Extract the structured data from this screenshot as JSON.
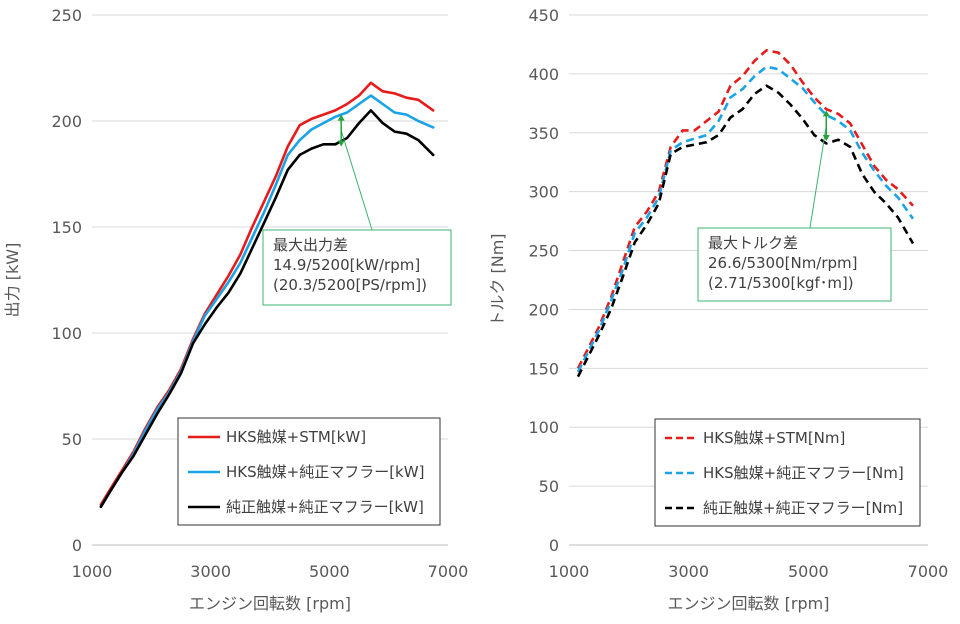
{
  "chart_data": [
    {
      "type": "line",
      "xlabel": "エンジン回転数 [rpm]",
      "ylabel": "出力 [kW]",
      "xlim": [
        1000,
        7000
      ],
      "ylim": [
        0,
        250
      ],
      "xticks": [
        1000,
        3000,
        5000,
        7000
      ],
      "yticks": [
        0,
        50,
        100,
        150,
        200,
        250
      ],
      "grid": "horizontal",
      "legend_position": "bottom-right",
      "series": [
        {
          "name": "HKS触媒+STM[kW]",
          "color": "#e81b1b",
          "style": "solid",
          "x": [
            1150,
            1300,
            1500,
            1700,
            1900,
            2100,
            2300,
            2500,
            2700,
            2900,
            3100,
            3300,
            3500,
            3700,
            3900,
            4100,
            4300,
            4500,
            4700,
            4900,
            5100,
            5300,
            5500,
            5700,
            5900,
            6100,
            6300,
            6500,
            6750
          ],
          "y": [
            19,
            26,
            35,
            44,
            55,
            65,
            73,
            83,
            97,
            109,
            118,
            127,
            137,
            150,
            162,
            174,
            188,
            198,
            201,
            203,
            205,
            208,
            212,
            218,
            214,
            213,
            211,
            210,
            205
          ]
        },
        {
          "name": "HKS触媒+純正マフラー[kW]",
          "color": "#1aa3e6",
          "style": "solid",
          "x": [
            1150,
            1300,
            1500,
            1700,
            1900,
            2100,
            2300,
            2500,
            2700,
            2900,
            3100,
            3300,
            3500,
            3700,
            3900,
            4100,
            4300,
            4500,
            4700,
            4900,
            5100,
            5300,
            5500,
            5700,
            5900,
            6100,
            6300,
            6500,
            6750
          ],
          "y": [
            18,
            25,
            34,
            43,
            54,
            64,
            72,
            82,
            96,
            108,
            116,
            124,
            133,
            145,
            157,
            170,
            184,
            191,
            196,
            199,
            202,
            204,
            208,
            212,
            208,
            204,
            203,
            200,
            197
          ]
        },
        {
          "name": "純正触媒+純正マフラー[kW]",
          "color": "#000000",
          "style": "solid",
          "x": [
            1150,
            1300,
            1500,
            1700,
            1900,
            2100,
            2300,
            2500,
            2700,
            2900,
            3100,
            3300,
            3500,
            3700,
            3900,
            4100,
            4300,
            4500,
            4700,
            4900,
            5100,
            5300,
            5500,
            5700,
            5900,
            6100,
            6300,
            6500,
            6750
          ],
          "y": [
            18,
            25,
            34,
            42,
            52,
            62,
            71,
            81,
            95,
            104,
            112,
            119,
            128,
            140,
            152,
            164,
            177,
            184,
            187,
            189,
            189,
            192,
            199,
            205,
            199,
            195,
            194,
            191,
            184
          ]
        }
      ],
      "annotation": {
        "x": 5200,
        "y_low": 188,
        "y_high": 203,
        "lines": [
          "最大出力差",
          "14.9/5200[kW/rpm]",
          "(20.3/5200[PS/rpm])"
        ]
      }
    },
    {
      "type": "line",
      "xlabel": "エンジン回転数 [rpm]",
      "ylabel": "トルク [Nm]",
      "xlim": [
        1000,
        7000
      ],
      "ylim": [
        0,
        450
      ],
      "xticks": [
        1000,
        3000,
        5000,
        7000
      ],
      "yticks": [
        0,
        50,
        100,
        150,
        200,
        250,
        300,
        350,
        400,
        450
      ],
      "grid": "horizontal",
      "legend_position": "bottom-right",
      "series": [
        {
          "name": "HKS触媒+STM[Nm]",
          "color": "#e81b1b",
          "style": "dashed",
          "x": [
            1150,
            1300,
            1500,
            1700,
            1900,
            2100,
            2300,
            2500,
            2700,
            2900,
            3100,
            3300,
            3500,
            3700,
            3900,
            4100,
            4300,
            4500,
            4700,
            4900,
            5100,
            5300,
            5500,
            5700,
            5900,
            6100,
            6300,
            6500,
            6750
          ],
          "y": [
            150,
            165,
            185,
            210,
            240,
            270,
            283,
            300,
            338,
            352,
            352,
            360,
            368,
            390,
            398,
            411,
            420,
            418,
            408,
            393,
            380,
            370,
            366,
            358,
            340,
            322,
            310,
            302,
            288
          ]
        },
        {
          "name": "HKS触媒+純正マフラー[Nm]",
          "color": "#1aa3e6",
          "style": "dashed",
          "x": [
            1150,
            1300,
            1500,
            1700,
            1900,
            2100,
            2300,
            2500,
            2700,
            2900,
            3100,
            3300,
            3500,
            3700,
            3900,
            4100,
            4300,
            4500,
            4700,
            4900,
            5100,
            5300,
            5500,
            5700,
            5900,
            6100,
            6300,
            6500,
            6750
          ],
          "y": [
            147,
            162,
            182,
            207,
            234,
            265,
            278,
            295,
            335,
            342,
            345,
            348,
            360,
            380,
            387,
            398,
            406,
            404,
            396,
            388,
            376,
            365,
            360,
            352,
            333,
            318,
            305,
            295,
            277
          ]
        },
        {
          "name": "純正触媒+純正マフラー[Nm]",
          "color": "#000000",
          "style": "dashed",
          "x": [
            1150,
            1300,
            1500,
            1700,
            1900,
            2100,
            2300,
            2500,
            2700,
            2900,
            3100,
            3300,
            3500,
            3700,
            3900,
            4100,
            4300,
            4500,
            4700,
            4900,
            5100,
            5300,
            5500,
            5700,
            5900,
            6100,
            6300,
            6500,
            6750
          ],
          "y": [
            143,
            158,
            178,
            200,
            228,
            257,
            272,
            290,
            332,
            338,
            340,
            342,
            348,
            363,
            370,
            383,
            390,
            384,
            374,
            362,
            348,
            341,
            344,
            338,
            315,
            300,
            290,
            278,
            256
          ]
        }
      ],
      "annotation": {
        "x": 5300,
        "y_low": 343,
        "y_high": 369,
        "lines": [
          "最大トルク差",
          "26.6/5300[Nm/rpm]",
          "(2.71/5300[kgf･m])"
        ]
      }
    }
  ]
}
